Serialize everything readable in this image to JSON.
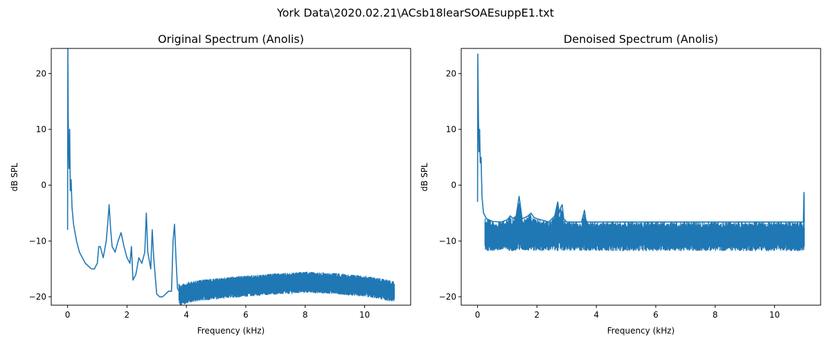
{
  "figure": {
    "suptitle": "York Data\\2020.02.21\\ACsb18learSOAEsuppE1.txt"
  },
  "style": {
    "line_color": "#1f77b4",
    "axis_color": "#000000",
    "background": "#ffffff"
  },
  "chart_data": [
    {
      "type": "line",
      "title": "Original Spectrum (Anolis)",
      "xlabel": "Frequency (kHz)",
      "ylabel": "dB SPL",
      "xlim": [
        -0.55,
        11.55
      ],
      "ylim": [
        -21.5,
        24.5
      ],
      "xticks": [
        0,
        2,
        4,
        6,
        8,
        10
      ],
      "yticks": [
        -20,
        -10,
        0,
        10,
        20
      ],
      "grid": false,
      "noise_band": {
        "note": "dense noise trace; envelope below",
        "lower_offset": -2.2,
        "upper_offset": 1.6
      },
      "series": [
        {
          "x": [
            0.0,
            0.01,
            0.02,
            0.03,
            0.05,
            0.07,
            0.09,
            0.12,
            0.15,
            0.2,
            0.3,
            0.4,
            0.5,
            0.6,
            0.7,
            0.8,
            0.9,
            1.0,
            1.05,
            1.1,
            1.2,
            1.3,
            1.35,
            1.4,
            1.45,
            1.5,
            1.6,
            1.7,
            1.8,
            1.9,
            2.0,
            2.1,
            2.15,
            2.2,
            2.3,
            2.4,
            2.5,
            2.6,
            2.65,
            2.7,
            2.8,
            2.85,
            2.9,
            3.0,
            3.1,
            3.2,
            3.3,
            3.4,
            3.5,
            3.55,
            3.6,
            3.65,
            3.7,
            3.8,
            4.0,
            4.5,
            5.0,
            5.5,
            6.0,
            6.5,
            7.0,
            7.5,
            8.0,
            8.5,
            9.0,
            9.5,
            10.0,
            10.5,
            11.0
          ],
          "y": [
            -8,
            24.5,
            14,
            8,
            3,
            10,
            -1,
            1,
            -4,
            -7,
            -10,
            -12,
            -13,
            -14,
            -14.5,
            -15,
            -15,
            -14,
            -11,
            -11,
            -13,
            -10,
            -7,
            -3.5,
            -8,
            -11,
            -12,
            -10,
            -8.5,
            -11,
            -13,
            -14,
            -11,
            -17,
            -16,
            -13,
            -14,
            -12,
            -5,
            -12,
            -15,
            -8,
            -13,
            -19.5,
            -20,
            -20,
            -19.5,
            -19,
            -19,
            -10,
            -7,
            -13,
            -18.5,
            -19.5,
            -19,
            -18.5,
            -18.3,
            -18,
            -17.8,
            -17.6,
            -17.4,
            -17.3,
            -17.1,
            -17.2,
            -17.3,
            -17.6,
            -17.8,
            -18.2,
            -18.8
          ]
        }
      ]
    },
    {
      "type": "line",
      "title": "Denoised Spectrum (Anolis)",
      "xlabel": "Frequency (kHz)",
      "ylabel": "dB SPL",
      "xlim": [
        -0.55,
        11.55
      ],
      "ylim": [
        -21.5,
        24.5
      ],
      "xticks": [
        0,
        2,
        4,
        6,
        8,
        10
      ],
      "yticks": [
        -20,
        -10,
        0,
        10,
        20
      ],
      "grid": false,
      "noise_band": {
        "note": "dense noise trace; envelope below",
        "lower": -11.8,
        "upper": -6.6
      },
      "series": [
        {
          "x": [
            0.0,
            0.01,
            0.02,
            0.03,
            0.05,
            0.07,
            0.09,
            0.12,
            0.15,
            0.2,
            0.3,
            0.5,
            0.8,
            1.0,
            1.1,
            1.2,
            1.3,
            1.4,
            1.45,
            1.5,
            1.6,
            1.7,
            1.8,
            1.9,
            2.0,
            2.2,
            2.4,
            2.6,
            2.7,
            2.75,
            2.8,
            2.85,
            2.9,
            3.0,
            3.5,
            3.6,
            3.65,
            3.7,
            4.0,
            6.0,
            8.0,
            10.0,
            10.97,
            10.99,
            11.0
          ],
          "y": [
            -3,
            23.5,
            18,
            12,
            6,
            10,
            4,
            5,
            -2,
            -5,
            -6,
            -6.5,
            -6.6,
            -6.2,
            -5.5,
            -6,
            -5.5,
            -2,
            -4,
            -6,
            -5.8,
            -5.5,
            -5,
            -5.8,
            -6,
            -6.3,
            -6.6,
            -5.5,
            -3,
            -5,
            -4,
            -3.5,
            -6,
            -6.6,
            -6.6,
            -4.5,
            -6.3,
            -6.6,
            -6.6,
            -6.6,
            -6.6,
            -6.6,
            -6.6,
            -1.3,
            -6.6
          ]
        }
      ]
    }
  ]
}
